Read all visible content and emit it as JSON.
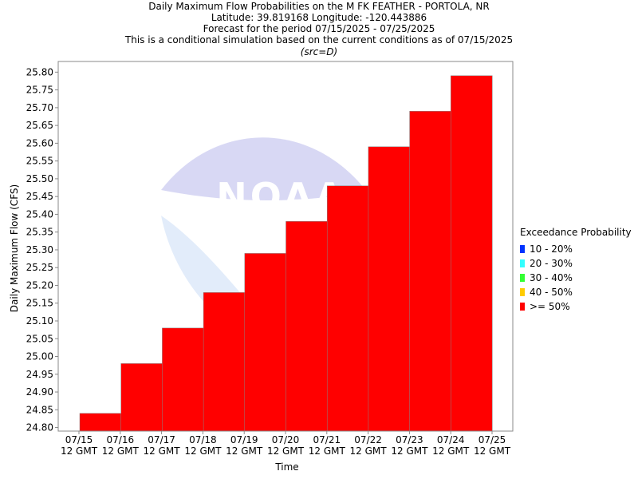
{
  "chart_data": {
    "type": "bar",
    "title": [
      "Daily Maximum Flow Probabilities on the M FK FEATHER - PORTOLA, NR",
      "Latitude: 39.819168 Longitude: -120.443886",
      "Forecast for the period 07/15/2025 - 07/25/2025",
      "This is a conditional simulation based on the current conditions as of 07/15/2025"
    ],
    "source_note": "(src=D)",
    "xlabel": "Time",
    "ylabel": "Daily Maximum Flow (CFS)",
    "x_ticks": [
      [
        "07/15",
        "12 GMT"
      ],
      [
        "07/16",
        "12 GMT"
      ],
      [
        "07/17",
        "12 GMT"
      ],
      [
        "07/18",
        "12 GMT"
      ],
      [
        "07/19",
        "12 GMT"
      ],
      [
        "07/20",
        "12 GMT"
      ],
      [
        "07/21",
        "12 GMT"
      ],
      [
        "07/22",
        "12 GMT"
      ],
      [
        "07/23",
        "12 GMT"
      ],
      [
        "07/24",
        "12 GMT"
      ],
      [
        "07/25",
        "12 GMT"
      ]
    ],
    "categories": [
      "07/15",
      "07/16",
      "07/17",
      "07/18",
      "07/19",
      "07/20",
      "07/21",
      "07/22",
      "07/23",
      "07/24"
    ],
    "series": [
      {
        "name": ">= 50%",
        "color": "#ff0000",
        "values": [
          24.84,
          24.98,
          25.08,
          25.18,
          25.29,
          25.38,
          25.48,
          25.59,
          25.69,
          25.79
        ]
      }
    ],
    "ylim": [
      24.79,
      25.83
    ],
    "y_ticks": [
      "24.80",
      "24.85",
      "24.90",
      "24.95",
      "25.00",
      "25.05",
      "25.10",
      "25.15",
      "25.20",
      "25.25",
      "25.30",
      "25.35",
      "25.40",
      "25.45",
      "25.50",
      "25.55",
      "25.60",
      "25.65",
      "25.70",
      "25.75",
      "25.80"
    ],
    "grid": false,
    "legend_placement": "right",
    "legend": {
      "title": "Exceedance Probability",
      "items": [
        {
          "label": "10 - 20%",
          "color": "#0033ff"
        },
        {
          "label": "20 - 30%",
          "color": "#33ffff"
        },
        {
          "label": "30 - 40%",
          "color": "#33ff33"
        },
        {
          "label": "40 - 50%",
          "color": "#ffcc00"
        },
        {
          "label": ">= 50%",
          "color": "#ff0000"
        }
      ]
    },
    "watermark": "NOAA"
  }
}
